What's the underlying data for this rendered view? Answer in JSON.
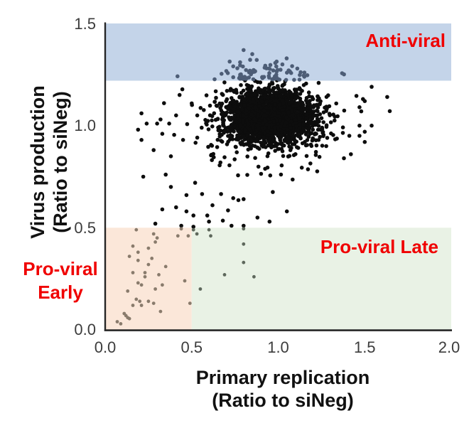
{
  "figure_title": "siRNA screen scatter: virus production vs primary replication",
  "colors": {
    "band_blue": "#c4d4e9",
    "band_orange": "#fbe7d9",
    "band_green": "#e9f2e5",
    "label_red": "#f00000",
    "dot_black": "#0d0d0d",
    "dot_in_blue": "#4d5d76",
    "dot_in_orange": "#897b6c",
    "dot_in_green": "#5e685c",
    "axis_line": "#262626",
    "tick_text": "#3c3c3c"
  },
  "axes": {
    "x": {
      "title_line1": "Primary replication",
      "title_line2": "(Ratio to siNeg)",
      "tick_labels": [
        "0.0",
        "0.5",
        "1.0",
        "1.5",
        "2.0"
      ]
    },
    "y": {
      "title_line1": "Virus production",
      "title_line2": "(Ratio to siNeg)",
      "tick_labels": [
        "1.5",
        "1.0",
        "0.5",
        "0.0"
      ]
    }
  },
  "regions": {
    "anti_viral": {
      "label": "Anti-viral"
    },
    "pro_viral_late": {
      "label": "Pro-viral Late"
    },
    "pro_viral_early": {
      "label_line1": "Pro-viral",
      "label_line2": "Early"
    }
  },
  "chart_data": {
    "type": "scatter",
    "title": "",
    "xlabel": "Primary replication (Ratio to siNeg)",
    "ylabel": "Virus production (Ratio to siNeg)",
    "xlim": [
      0,
      2.0
    ],
    "ylim": [
      0,
      1.5
    ],
    "x_ticks": [
      0.0,
      0.5,
      1.0,
      1.5,
      2.0
    ],
    "y_ticks": [
      0.0,
      0.5,
      1.0,
      1.5
    ],
    "grid": false,
    "legend": "none",
    "regions": [
      {
        "name": "Anti-viral",
        "x_range": [
          0,
          2.0
        ],
        "y_range": [
          1.22,
          1.5
        ]
      },
      {
        "name": "Pro-viral Early",
        "x_range": [
          0,
          0.5
        ],
        "y_range": [
          0,
          0.5
        ]
      },
      {
        "name": "Pro-viral Late",
        "x_range": [
          0.5,
          2.0
        ],
        "y_range": [
          0,
          0.5
        ]
      }
    ],
    "regions_thresholds": {
      "anti_viral_y": 1.222,
      "pro_viral_y": 0.5,
      "early_late_x": 0.5
    },
    "main_cluster": {
      "description": "Dense cloud of ~2500 siRNA data points centered near ratio (0.95, 1.05); parameters estimated from pixels, points regenerated deterministically from seed",
      "seed": 42,
      "clip": {
        "x": [
          0.17,
          1.66
        ],
        "y": [
          0.505,
          1.39
        ]
      },
      "groups": [
        {
          "n": 2150,
          "cx": 0.95,
          "cy": 1.045,
          "sx": 0.125,
          "sy": 0.062
        },
        {
          "n": 330,
          "cx": 0.93,
          "cy": 1.01,
          "sx": 0.21,
          "sy": 0.105
        },
        {
          "n": 75,
          "cx": 0.92,
          "sx": 0.16,
          "y_base": 1.225,
          "y_spread": 0.04
        }
      ]
    },
    "outlier_points": {
      "left": [
        [
          0.21,
          1.06
        ],
        [
          0.24,
          1.01
        ],
        [
          0.19,
          0.98
        ],
        [
          0.21,
          0.93
        ],
        [
          0.34,
          1.11
        ],
        [
          0.32,
          1.03
        ],
        [
          0.3,
          1.01
        ],
        [
          0.33,
          0.96
        ],
        [
          0.37,
          1.01
        ],
        [
          0.41,
          1.05
        ],
        [
          0.43,
          1.15
        ],
        [
          0.28,
          0.88
        ],
        [
          0.45,
          0.93
        ],
        [
          0.38,
          0.85
        ]
      ],
      "right": [
        [
          1.54,
          1.19
        ],
        [
          1.63,
          1.14
        ],
        [
          1.49,
          1.13
        ],
        [
          1.5,
          1.12
        ],
        [
          1.47,
          1.09
        ],
        [
          1.48,
          1.07
        ],
        [
          1.47,
          1.0
        ],
        [
          1.54,
          1.0
        ],
        [
          1.5,
          0.97
        ],
        [
          1.47,
          0.95
        ],
        [
          1.5,
          0.92
        ],
        [
          1.42,
          0.86
        ],
        [
          1.38,
          0.84
        ]
      ],
      "lower_fringe": [
        [
          0.22,
          0.75
        ],
        [
          0.33,
          0.59
        ],
        [
          0.41,
          0.6
        ],
        [
          0.47,
          0.58
        ],
        [
          0.51,
          0.56
        ],
        [
          0.59,
          0.56
        ],
        [
          0.71,
          0.585
        ],
        [
          0.77,
          0.635
        ],
        [
          0.8,
          0.64
        ],
        [
          0.47,
          0.66
        ],
        [
          0.56,
          0.665
        ],
        [
          0.67,
          0.665
        ],
        [
          0.74,
          0.645
        ],
        [
          0.29,
          0.52
        ],
        [
          0.44,
          0.51
        ],
        [
          0.51,
          0.505
        ],
        [
          0.6,
          0.53
        ],
        [
          0.68,
          0.535
        ],
        [
          0.73,
          0.51
        ],
        [
          0.8,
          0.51
        ],
        [
          1.05,
          0.58
        ],
        [
          0.38,
          0.7
        ],
        [
          0.35,
          0.76
        ],
        [
          0.52,
          0.72
        ],
        [
          0.62,
          0.61
        ],
        [
          0.88,
          0.55
        ],
        [
          0.95,
          0.53
        ]
      ],
      "high_in_band": [
        [
          0.8,
          1.37
        ],
        [
          0.85,
          1.35
        ],
        [
          0.78,
          1.31
        ],
        [
          0.74,
          1.29
        ]
      ],
      "pro_viral_early": [
        [
          0.18,
          0.49
        ],
        [
          0.28,
          0.47
        ],
        [
          0.3,
          0.45
        ],
        [
          0.29,
          0.43
        ],
        [
          0.42,
          0.46
        ],
        [
          0.48,
          0.46
        ],
        [
          0.44,
          0.495
        ],
        [
          0.16,
          0.41
        ],
        [
          0.19,
          0.38
        ],
        [
          0.14,
          0.36
        ],
        [
          0.25,
          0.4
        ],
        [
          0.19,
          0.34
        ],
        [
          0.16,
          0.28
        ],
        [
          0.23,
          0.28
        ],
        [
          0.23,
          0.26
        ],
        [
          0.19,
          0.23
        ],
        [
          0.21,
          0.22
        ],
        [
          0.13,
          0.19
        ],
        [
          0.18,
          0.15
        ],
        [
          0.2,
          0.14
        ],
        [
          0.16,
          0.12
        ],
        [
          0.21,
          0.12
        ],
        [
          0.25,
          0.14
        ],
        [
          0.28,
          0.13
        ],
        [
          0.32,
          0.09
        ],
        [
          0.11,
          0.08
        ],
        [
          0.12,
          0.07
        ],
        [
          0.13,
          0.06
        ],
        [
          0.14,
          0.055
        ],
        [
          0.07,
          0.04
        ],
        [
          0.09,
          0.03
        ],
        [
          0.25,
          0.32
        ],
        [
          0.31,
          0.27
        ],
        [
          0.33,
          0.22
        ],
        [
          0.29,
          0.2
        ],
        [
          0.46,
          0.24
        ],
        [
          0.49,
          0.13
        ],
        [
          0.35,
          0.31
        ],
        [
          0.27,
          0.35
        ]
      ],
      "pro_viral_late": [
        [
          0.51,
          0.49
        ],
        [
          0.53,
          0.47
        ],
        [
          0.6,
          0.49
        ],
        [
          0.61,
          0.46
        ],
        [
          0.55,
          0.2
        ],
        [
          0.69,
          0.27
        ],
        [
          0.8,
          0.495
        ],
        [
          0.8,
          0.42
        ],
        [
          0.8,
          0.33
        ],
        [
          0.86,
          0.26
        ]
      ]
    },
    "point_style": {
      "radius_main": 2.8,
      "radius_bottom": 2.4
    }
  }
}
